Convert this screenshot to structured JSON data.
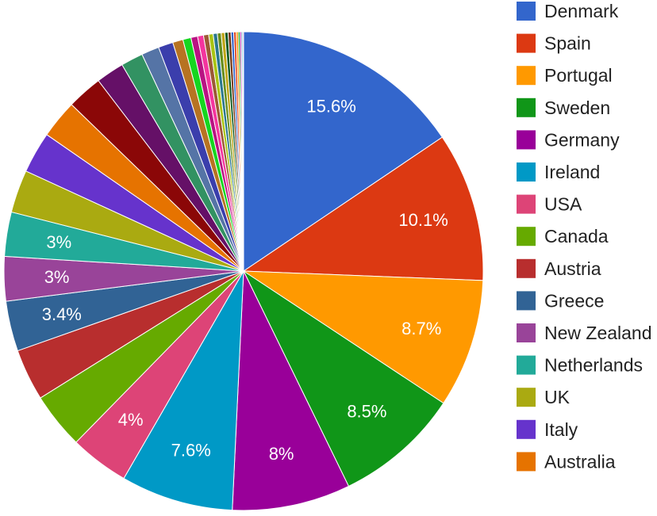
{
  "chart_data": {
    "type": "pie",
    "title": "",
    "start_angle_deg": 0,
    "legend_position": "right",
    "slices": [
      {
        "label": "Denmark",
        "value": 15.6,
        "display": "15.6%",
        "color": "#3366cc"
      },
      {
        "label": "Spain",
        "value": 10.1,
        "display": "10.1%",
        "color": "#dc3912"
      },
      {
        "label": "Portugal",
        "value": 8.7,
        "display": "8.7%",
        "color": "#ff9900"
      },
      {
        "label": "Sweden",
        "value": 8.5,
        "display": "8.5%",
        "color": "#109618"
      },
      {
        "label": "Germany",
        "value": 8.0,
        "display": "8%",
        "color": "#990099"
      },
      {
        "label": "Ireland",
        "value": 7.6,
        "display": "7.6%",
        "color": "#0099c6"
      },
      {
        "label": "USA",
        "value": 4.0,
        "display": "4%",
        "color": "#dd4477"
      },
      {
        "label": "Canada",
        "value": 3.8,
        "display": "",
        "color": "#66aa00"
      },
      {
        "label": "Austria",
        "value": 3.5,
        "display": "",
        "color": "#b82e2e"
      },
      {
        "label": "Greece",
        "value": 3.4,
        "display": "3.4%",
        "color": "#316395"
      },
      {
        "label": "New Zealand",
        "value": 3.0,
        "display": "3%",
        "color": "#994499"
      },
      {
        "label": "Netherlands",
        "value": 3.0,
        "display": "3%",
        "color": "#22aa99"
      },
      {
        "label": "UK",
        "value": 2.9,
        "display": "",
        "color": "#aaaa11"
      },
      {
        "label": "Italy",
        "value": 2.8,
        "display": "",
        "color": "#6633cc"
      },
      {
        "label": "Australia",
        "value": 2.6,
        "display": "",
        "color": "#e67300"
      },
      {
        "label": "",
        "value": 2.4,
        "display": "",
        "color": "#8b0707"
      },
      {
        "label": "",
        "value": 1.9,
        "display": "",
        "color": "#651067"
      },
      {
        "label": "",
        "value": 1.5,
        "display": "",
        "color": "#329262"
      },
      {
        "label": "",
        "value": 1.2,
        "display": "",
        "color": "#5574a6"
      },
      {
        "label": "",
        "value": 1.0,
        "display": "",
        "color": "#3b3eac"
      },
      {
        "label": "",
        "value": 0.7,
        "display": "",
        "color": "#b77322"
      },
      {
        "label": "",
        "value": 0.55,
        "display": "",
        "color": "#16d620"
      },
      {
        "label": "",
        "value": 0.45,
        "display": "",
        "color": "#b91383"
      },
      {
        "label": "",
        "value": 0.4,
        "display": "",
        "color": "#f4359e"
      },
      {
        "label": "",
        "value": 0.35,
        "display": "",
        "color": "#9c5935"
      },
      {
        "label": "",
        "value": 0.3,
        "display": "",
        "color": "#a9c413"
      },
      {
        "label": "",
        "value": 0.28,
        "display": "",
        "color": "#2a778d"
      },
      {
        "label": "",
        "value": 0.26,
        "display": "",
        "color": "#668d1c"
      },
      {
        "label": "",
        "value": 0.24,
        "display": "",
        "color": "#bea413"
      },
      {
        "label": "",
        "value": 0.22,
        "display": "",
        "color": "#0c5922"
      },
      {
        "label": "",
        "value": 0.2,
        "display": "",
        "color": "#743411"
      },
      {
        "label": "",
        "value": 0.18,
        "display": "",
        "color": "#3366cc"
      },
      {
        "label": "",
        "value": 0.16,
        "display": "",
        "color": "#dc3912"
      },
      {
        "label": "",
        "value": 0.14,
        "display": "",
        "color": "#ff9900"
      },
      {
        "label": "",
        "value": 0.12,
        "display": "",
        "color": "#109618"
      },
      {
        "label": "",
        "value": 0.1,
        "display": "",
        "color": "#990099"
      },
      {
        "label": "",
        "value": 0.08,
        "display": "",
        "color": "#0099c6"
      },
      {
        "label": "",
        "value": 0.06,
        "display": "",
        "color": "#dd4477"
      }
    ],
    "legend": [
      {
        "label": "Denmark",
        "color": "#3366cc"
      },
      {
        "label": "Spain",
        "color": "#dc3912"
      },
      {
        "label": "Portugal",
        "color": "#ff9900"
      },
      {
        "label": "Sweden",
        "color": "#109618"
      },
      {
        "label": "Germany",
        "color": "#990099"
      },
      {
        "label": "Ireland",
        "color": "#0099c6"
      },
      {
        "label": "USA",
        "color": "#dd4477"
      },
      {
        "label": "Canada",
        "color": "#66aa00"
      },
      {
        "label": "Austria",
        "color": "#b82e2e"
      },
      {
        "label": "Greece",
        "color": "#316395"
      },
      {
        "label": "New Zealand",
        "color": "#994499"
      },
      {
        "label": "Netherlands",
        "color": "#22aa99"
      },
      {
        "label": "UK",
        "color": "#aaaa11"
      },
      {
        "label": "Italy",
        "color": "#6633cc"
      },
      {
        "label": "Australia",
        "color": "#e67300"
      }
    ]
  }
}
